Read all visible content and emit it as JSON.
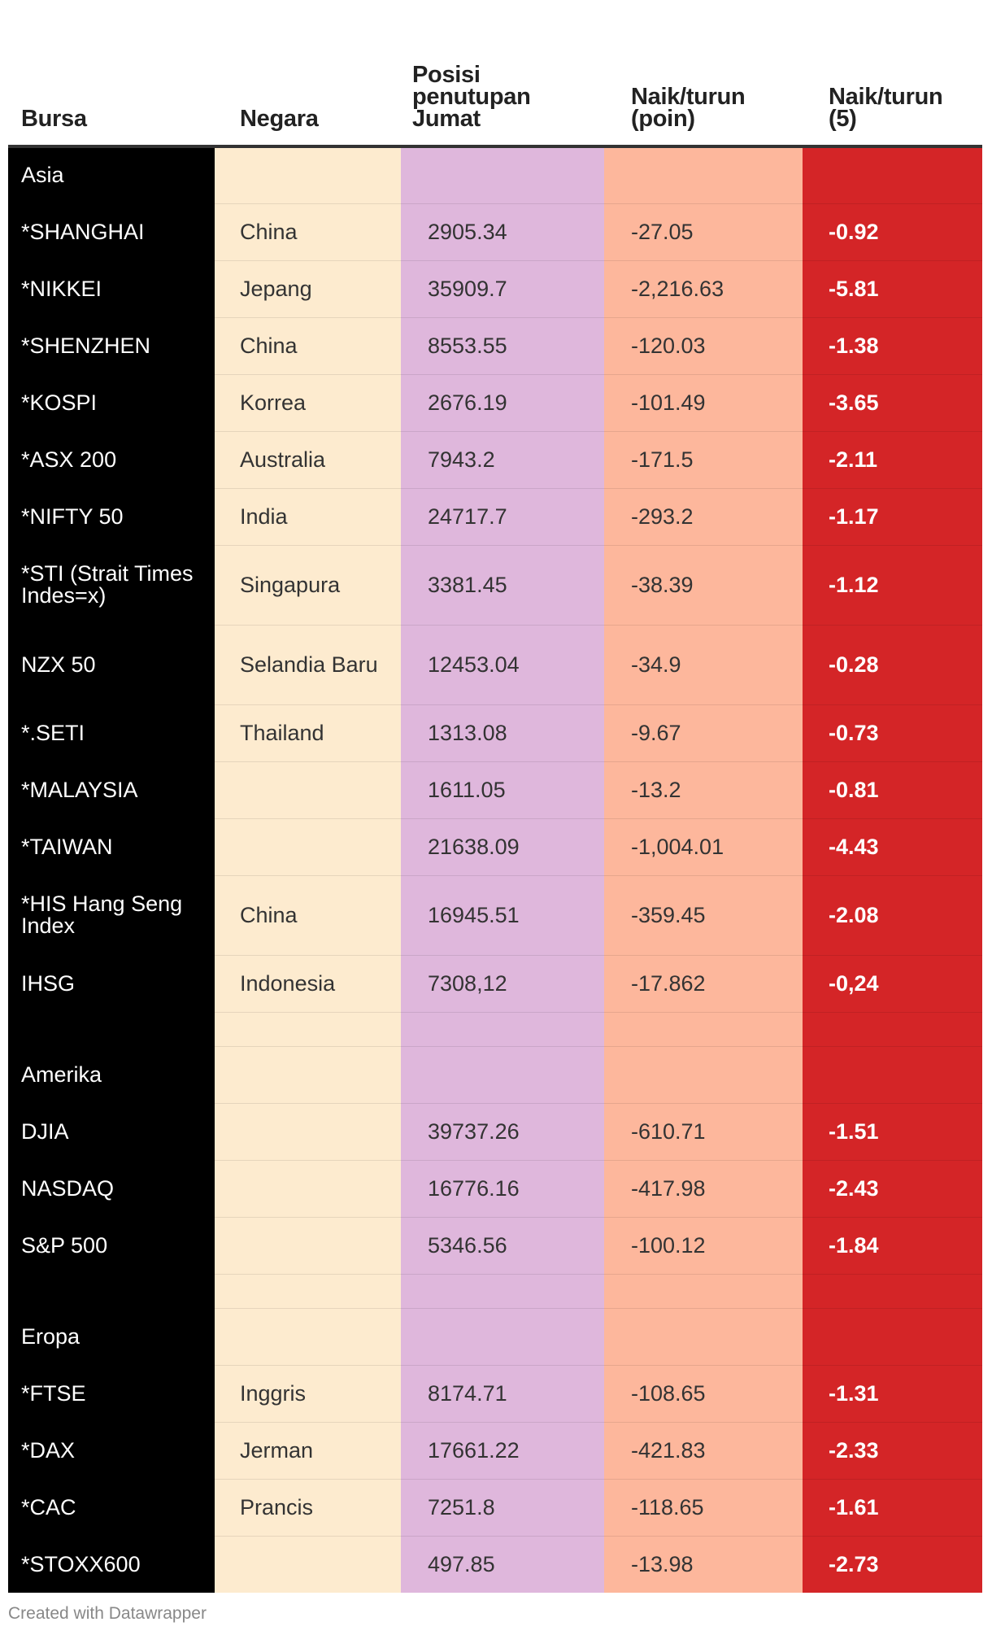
{
  "chart_data": {
    "type": "table",
    "columns": [
      "Bursa",
      "Negara",
      "Posisi penutupan Jumat",
      "Naik/turun (poin)",
      "Naik/turun (5)"
    ],
    "rows": [
      {
        "bursa": "Asia",
        "negara": "",
        "posisi": "",
        "poin": "",
        "persen": "",
        "kind": "group"
      },
      {
        "bursa": "*SHANGHAI",
        "negara": "China",
        "posisi": "2905.34",
        "poin": "-27.05",
        "persen": "-0.92",
        "kind": "row"
      },
      {
        "bursa": "*NIKKEI",
        "negara": "Jepang",
        "posisi": "35909.7",
        "poin": "-2,216.63",
        "persen": "-5.81",
        "kind": "row"
      },
      {
        "bursa": "*SHENZHEN",
        "negara": "China",
        "posisi": "8553.55",
        "poin": "-120.03",
        "persen": "-1.38",
        "kind": "row"
      },
      {
        "bursa": "*KOSPI",
        "negara": "Korrea",
        "posisi": "2676.19",
        "poin": "-101.49",
        "persen": "-3.65",
        "kind": "row"
      },
      {
        "bursa": "*ASX 200",
        "negara": "Australia",
        "posisi": "7943.2",
        "poin": "-171.5",
        "persen": "-2.11",
        "kind": "row"
      },
      {
        "bursa": "*NIFTY 50",
        "negara": "India",
        "posisi": "24717.7",
        "poin": "-293.2",
        "persen": "-1.17",
        "kind": "row"
      },
      {
        "bursa": "*STI (Strait Times Indes=x)",
        "negara": "Singapura",
        "posisi": "3381.45",
        "poin": "-38.39",
        "persen": "-1.12",
        "kind": "tall"
      },
      {
        "bursa": "NZX 50",
        "negara": "Selandia Baru",
        "posisi": "12453.04",
        "poin": "-34.9",
        "persen": "-0.28",
        "kind": "tall"
      },
      {
        "bursa": "*.SETI",
        "negara": "Thailand",
        "posisi": "1313.08",
        "poin": "-9.67",
        "persen": "-0.73",
        "kind": "row"
      },
      {
        "bursa": "*MALAYSIA",
        "negara": "",
        "posisi": "1611.05",
        "poin": "-13.2",
        "persen": "-0.81",
        "kind": "row"
      },
      {
        "bursa": "*TAIWAN",
        "negara": "",
        "posisi": "21638.09",
        "poin": "-1,004.01",
        "persen": "-4.43",
        "kind": "row"
      },
      {
        "bursa": "*HIS Hang Seng Index",
        "negara": "China",
        "posisi": "16945.51",
        "poin": "-359.45",
        "persen": "-2.08",
        "kind": "tall"
      },
      {
        "bursa": "IHSG",
        "negara": "Indonesia",
        "posisi": "7308,12",
        "poin": "-17.862",
        "persen": "-0,24",
        "kind": "row"
      },
      {
        "bursa": "",
        "negara": "",
        "posisi": "",
        "poin": "",
        "persen": "",
        "kind": "spacer"
      },
      {
        "bursa": "Amerika",
        "negara": "",
        "posisi": "",
        "poin": "",
        "persen": "",
        "kind": "group"
      },
      {
        "bursa": "DJIA",
        "negara": "",
        "posisi": "39737.26",
        "poin": "-610.71",
        "persen": "-1.51",
        "kind": "row"
      },
      {
        "bursa": "NASDAQ",
        "negara": "",
        "posisi": "16776.16",
        "poin": "-417.98",
        "persen": "-2.43",
        "kind": "row"
      },
      {
        "bursa": "S&P 500",
        "negara": "",
        "posisi": "5346.56",
        "poin": "-100.12",
        "persen": "-1.84",
        "kind": "row"
      },
      {
        "bursa": "",
        "negara": "",
        "posisi": "",
        "poin": "",
        "persen": "",
        "kind": "spacer"
      },
      {
        "bursa": "Eropa",
        "negara": "",
        "posisi": "",
        "poin": "",
        "persen": "",
        "kind": "group"
      },
      {
        "bursa": "*FTSE",
        "negara": "Inggris",
        "posisi": "8174.71",
        "poin": "-108.65",
        "persen": "-1.31",
        "kind": "row"
      },
      {
        "bursa": "*DAX",
        "negara": "Jerman",
        "posisi": "17661.22",
        "poin": "-421.83",
        "persen": "-2.33",
        "kind": "row"
      },
      {
        "bursa": "*CAC",
        "negara": "Prancis",
        "posisi": "7251.8",
        "poin": "-118.65",
        "persen": "-1.61",
        "kind": "row"
      },
      {
        "bursa": "*STOXX600",
        "negara": "",
        "posisi": "497.85",
        "poin": "-13.98",
        "persen": "-2.73",
        "kind": "row"
      }
    ],
    "column_colors": [
      "#000000",
      "#fdebcf",
      "#dfb7dc",
      "#fdb79c",
      "#d42527"
    ]
  },
  "header": {
    "bursa": "Bursa",
    "negara": "Negara",
    "posisi_lines": [
      "Posisi",
      "penutupan",
      "Jumat"
    ],
    "poin_lines": [
      "Naik/turun",
      "(poin)"
    ],
    "persen_lines": [
      "Naik/turun",
      "(5)"
    ]
  },
  "footer": {
    "credit": "Created with Datawrapper"
  }
}
